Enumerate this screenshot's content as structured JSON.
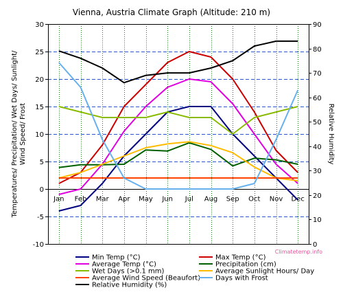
{
  "chart_data": {
    "type": "line",
    "title": "Vienna, Austria Climate Graph (Altitude: 210 m)",
    "ylabel_left": [
      "Temperatures/ Precipitation/ Wet Days/ Sunlight/",
      "Wind Speed/ Frost"
    ],
    "ylabel_right": "Relative Humidity",
    "categories": [
      "Jan",
      "Feb",
      "Mar",
      "Apr",
      "May",
      "Jun",
      "Jul",
      "Aug",
      "Sep",
      "Oct",
      "Nov",
      "Dec"
    ],
    "ylim_left": [
      -10,
      30
    ],
    "ylim_right": [
      0,
      90
    ],
    "yticks_left": [
      "-10",
      "-5",
      "0",
      "5",
      "10",
      "15",
      "20",
      "25",
      "30"
    ],
    "yticks_right": [
      "0",
      "10",
      "20",
      "30",
      "40",
      "50",
      "60",
      "70",
      "80",
      "90"
    ],
    "grid": true,
    "legend_position": "bottom",
    "watermark": "Climatetemp.info",
    "series": [
      {
        "name": "Min Temp (°C)",
        "color": "#000080",
        "axis": "left",
        "values": [
          -4,
          -3,
          1,
          6,
          10,
          14,
          15,
          15,
          10,
          6,
          2,
          -2
        ]
      },
      {
        "name": "Max Temp (°C)",
        "color": "#cc0000",
        "axis": "left",
        "values": [
          1,
          3,
          8,
          15,
          19,
          23,
          25,
          24,
          20,
          14,
          7,
          3
        ]
      },
      {
        "name": "Average Temp (°C)",
        "color": "#e000e0",
        "axis": "left",
        "values": [
          -1,
          0,
          4.5,
          10.5,
          15,
          18.5,
          20,
          19.5,
          15.5,
          10,
          4.5,
          1
        ]
      },
      {
        "name": "Precipitation (cm)",
        "color": "#006000",
        "axis": "left",
        "values": [
          3.9,
          4.4,
          4.4,
          4.5,
          7.1,
          6.9,
          8.4,
          7.2,
          4.2,
          5.6,
          5.3,
          4.5
        ]
      },
      {
        "name": "Wet Days (>0.1 mm)",
        "color": "#88bb00",
        "axis": "left",
        "values": [
          15,
          14,
          13,
          13,
          13,
          14,
          13,
          13,
          10,
          13,
          14,
          15
        ]
      },
      {
        "name": "Average Sunlight Hours/ Day",
        "color": "#ffbb00",
        "axis": "left",
        "values": [
          2,
          3,
          4.5,
          6,
          7.5,
          8.2,
          8.6,
          7.9,
          6.6,
          4,
          2,
          1.5
        ]
      },
      {
        "name": "Average Wind Speed (Beaufort)",
        "color": "#ff4400",
        "axis": "left",
        "values": [
          2,
          2,
          2,
          2,
          2,
          2,
          2,
          2,
          2,
          2,
          2,
          2
        ]
      },
      {
        "name": "Days with Frost",
        "color": "#66b0ee",
        "axis": "left",
        "values": [
          23,
          18.5,
          9,
          2,
          0,
          0,
          0,
          0,
          0,
          1,
          9,
          18
        ]
      },
      {
        "name": "Relative Humidity (%)",
        "color": "#000000",
        "axis": "right",
        "values": [
          79,
          76,
          72,
          66,
          69,
          70,
          70,
          72,
          75,
          81,
          83,
          83
        ]
      }
    ]
  }
}
